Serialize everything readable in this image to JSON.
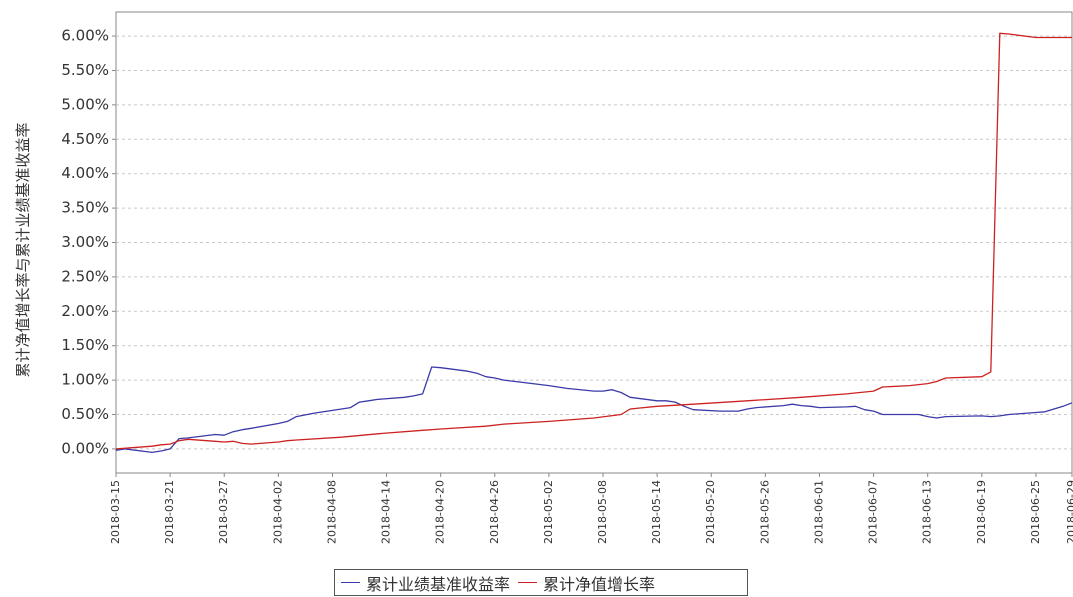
{
  "chart_data": {
    "type": "line",
    "ylabel": "累计净值增长率与累计业绩基准收益率",
    "xlabel": "",
    "title": "",
    "ylim": [
      -0.35,
      6.35
    ],
    "yticks": [
      "0.00%",
      "0.50%",
      "1.00%",
      "1.50%",
      "2.00%",
      "2.50%",
      "3.00%",
      "3.50%",
      "4.00%",
      "4.50%",
      "5.00%",
      "5.50%",
      "6.00%"
    ],
    "ytick_values": [
      0,
      0.5,
      1.0,
      1.5,
      2.0,
      2.5,
      3.0,
      3.5,
      4.0,
      4.5,
      5.0,
      5.5,
      6.0
    ],
    "xlim": [
      "2018-03-15",
      "2018-06-29"
    ],
    "xticks": [
      "2018-03-15",
      "2018-03-21",
      "2018-03-27",
      "2018-04-02",
      "2018-04-08",
      "2018-04-14",
      "2018-04-20",
      "2018-04-26",
      "2018-05-02",
      "2018-05-08",
      "2018-05-14",
      "2018-05-20",
      "2018-05-26",
      "2018-06-01",
      "2018-06-07",
      "2018-06-13",
      "2018-06-19",
      "2018-06-25",
      "2018-06-29"
    ],
    "grid": "horizontal dashed",
    "legend_position": "bottom-center",
    "series": [
      {
        "name": "累计业绩基准收益率",
        "color": "#3a3aa8",
        "points": [
          [
            "2018-03-15",
            -0.02
          ],
          [
            "2018-03-16",
            0.0
          ],
          [
            "2018-03-19",
            -0.05
          ],
          [
            "2018-03-20",
            -0.03
          ],
          [
            "2018-03-21",
            0.0
          ],
          [
            "2018-03-22",
            0.15
          ],
          [
            "2018-03-23",
            0.16
          ],
          [
            "2018-03-26",
            0.21
          ],
          [
            "2018-03-27",
            0.2
          ],
          [
            "2018-03-28",
            0.25
          ],
          [
            "2018-03-29",
            0.28
          ],
          [
            "2018-03-30",
            0.3
          ],
          [
            "2018-04-02",
            0.37
          ],
          [
            "2018-04-03",
            0.4
          ],
          [
            "2018-04-04",
            0.47
          ],
          [
            "2018-04-06",
            0.52
          ],
          [
            "2018-04-09",
            0.58
          ],
          [
            "2018-04-10",
            0.6
          ],
          [
            "2018-04-11",
            0.68
          ],
          [
            "2018-04-12",
            0.7
          ],
          [
            "2018-04-13",
            0.72
          ],
          [
            "2018-04-16",
            0.75
          ],
          [
            "2018-04-17",
            0.77
          ],
          [
            "2018-04-18",
            0.8
          ],
          [
            "2018-04-19",
            1.19
          ],
          [
            "2018-04-20",
            1.18
          ],
          [
            "2018-04-23",
            1.13
          ],
          [
            "2018-04-24",
            1.1
          ],
          [
            "2018-04-25",
            1.05
          ],
          [
            "2018-04-26",
            1.03
          ],
          [
            "2018-04-27",
            1.0
          ],
          [
            "2018-05-02",
            0.92
          ],
          [
            "2018-05-03",
            0.9
          ],
          [
            "2018-05-04",
            0.88
          ],
          [
            "2018-05-07",
            0.84
          ],
          [
            "2018-05-08",
            0.84
          ],
          [
            "2018-05-09",
            0.86
          ],
          [
            "2018-05-10",
            0.82
          ],
          [
            "2018-05-11",
            0.75
          ],
          [
            "2018-05-14",
            0.7
          ],
          [
            "2018-05-15",
            0.7
          ],
          [
            "2018-05-16",
            0.68
          ],
          [
            "2018-05-17",
            0.62
          ],
          [
            "2018-05-18",
            0.57
          ],
          [
            "2018-05-21",
            0.55
          ],
          [
            "2018-05-22",
            0.55
          ],
          [
            "2018-05-23",
            0.55
          ],
          [
            "2018-05-24",
            0.58
          ],
          [
            "2018-05-25",
            0.6
          ],
          [
            "2018-05-28",
            0.63
          ],
          [
            "2018-05-29",
            0.65
          ],
          [
            "2018-05-30",
            0.63
          ],
          [
            "2018-05-31",
            0.62
          ],
          [
            "2018-06-01",
            0.6
          ],
          [
            "2018-06-04",
            0.61
          ],
          [
            "2018-06-05",
            0.62
          ],
          [
            "2018-06-06",
            0.57
          ],
          [
            "2018-06-07",
            0.55
          ],
          [
            "2018-06-08",
            0.5
          ],
          [
            "2018-06-11",
            0.5
          ],
          [
            "2018-06-12",
            0.5
          ],
          [
            "2018-06-13",
            0.47
          ],
          [
            "2018-06-14",
            0.45
          ],
          [
            "2018-06-15",
            0.47
          ],
          [
            "2018-06-19",
            0.48
          ],
          [
            "2018-06-20",
            0.47
          ],
          [
            "2018-06-21",
            0.48
          ],
          [
            "2018-06-22",
            0.5
          ],
          [
            "2018-06-25",
            0.53
          ],
          [
            "2018-06-26",
            0.54
          ],
          [
            "2018-06-27",
            0.58
          ],
          [
            "2018-06-28",
            0.62
          ],
          [
            "2018-06-29",
            0.67
          ]
        ]
      },
      {
        "name": "累计净值增长率",
        "color": "#cc2222",
        "points": [
          [
            "2018-03-15",
            0.0
          ],
          [
            "2018-03-19",
            0.04
          ],
          [
            "2018-03-20",
            0.06
          ],
          [
            "2018-03-21",
            0.07
          ],
          [
            "2018-03-22",
            0.12
          ],
          [
            "2018-03-23",
            0.14
          ],
          [
            "2018-03-26",
            0.11
          ],
          [
            "2018-03-27",
            0.1
          ],
          [
            "2018-03-28",
            0.11
          ],
          [
            "2018-03-29",
            0.08
          ],
          [
            "2018-03-30",
            0.07
          ],
          [
            "2018-04-02",
            0.1
          ],
          [
            "2018-04-03",
            0.12
          ],
          [
            "2018-04-04",
            0.13
          ],
          [
            "2018-04-09",
            0.17
          ],
          [
            "2018-04-13",
            0.22
          ],
          [
            "2018-04-18",
            0.27
          ],
          [
            "2018-04-20",
            0.29
          ],
          [
            "2018-04-25",
            0.33
          ],
          [
            "2018-04-27",
            0.36
          ],
          [
            "2018-05-02",
            0.4
          ],
          [
            "2018-05-07",
            0.45
          ],
          [
            "2018-05-10",
            0.5
          ],
          [
            "2018-05-11",
            0.58
          ],
          [
            "2018-05-14",
            0.62
          ],
          [
            "2018-05-18",
            0.65
          ],
          [
            "2018-05-24",
            0.7
          ],
          [
            "2018-05-30",
            0.75
          ],
          [
            "2018-06-04",
            0.8
          ],
          [
            "2018-06-07",
            0.84
          ],
          [
            "2018-06-08",
            0.9
          ],
          [
            "2018-06-11",
            0.92
          ],
          [
            "2018-06-13",
            0.95
          ],
          [
            "2018-06-14",
            0.98
          ],
          [
            "2018-06-15",
            1.03
          ],
          [
            "2018-06-19",
            1.05
          ],
          [
            "2018-06-20",
            1.12
          ],
          [
            "2018-06-21",
            6.04
          ],
          [
            "2018-06-22",
            6.03
          ],
          [
            "2018-06-25",
            5.98
          ],
          [
            "2018-06-29",
            5.98
          ]
        ]
      }
    ]
  }
}
